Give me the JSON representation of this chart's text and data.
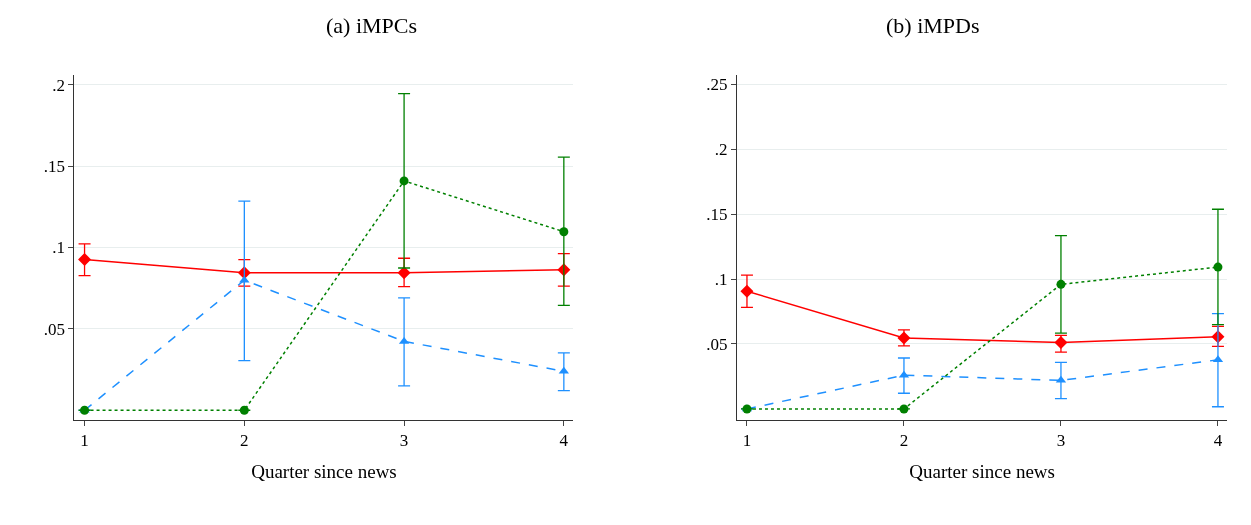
{
  "chart_data": [
    {
      "type": "line",
      "title": "(a) iMPCs",
      "xlabel": "Quarter since news",
      "x": [
        1,
        2,
        3,
        4
      ],
      "xlim": [
        0.937,
        4.06
      ],
      "xticks": [
        1,
        2,
        3,
        4
      ],
      "ylim": [
        -0.006,
        0.206
      ],
      "yticks": [
        {
          "value": 0.05,
          "label": ".05"
        },
        {
          "value": 0.1,
          "label": ".1"
        },
        {
          "value": 0.15,
          "label": ".15"
        },
        {
          "value": 0.2,
          "label": ".2"
        }
      ],
      "grid": "y",
      "series": [
        {
          "color": "#ff0000",
          "marker": "diamond",
          "line_style": "solid",
          "values": [
            0.0927,
            0.0845,
            0.0845,
            0.0863
          ],
          "errors": [
            [
              0.0827,
              0.1022
            ],
            [
              0.0763,
              0.0925
            ],
            [
              0.0759,
              0.0934
            ],
            [
              0.0763,
              0.0962
            ]
          ]
        },
        {
          "color": "#1e90ff",
          "marker": "triangle",
          "line_style": "dashed",
          "values": [
            0,
            0.0799,
            0.0423,
            0.0239
          ],
          "errors": [
            null,
            [
              0.0305,
              0.1285
            ],
            [
              0.015,
              0.069
            ],
            [
              0.012,
              0.0352
            ]
          ]
        },
        {
          "color": "#008000",
          "marker": "circle",
          "line_style": "dotted",
          "values": [
            0,
            0,
            0.1409,
            0.1097
          ],
          "errors": [
            null,
            null,
            [
              0.0874,
              0.1945
            ],
            [
              0.0644,
              0.1555
            ]
          ]
        }
      ]
    },
    {
      "type": "line",
      "title": "(b) iMPDs",
      "xlabel": "Quarter since news",
      "x": [
        1,
        2,
        3,
        4
      ],
      "xlim": [
        0.936,
        4.06
      ],
      "xticks": [
        1,
        2,
        3,
        4
      ],
      "ylim": [
        -0.0085,
        0.257
      ],
      "yticks": [
        {
          "value": 0.05,
          "label": ".05"
        },
        {
          "value": 0.1,
          "label": ".1"
        },
        {
          "value": 0.15,
          "label": ".15"
        },
        {
          "value": 0.2,
          "label": ".2"
        },
        {
          "value": 0.25,
          "label": ".25"
        }
      ],
      "grid": "y",
      "series": [
        {
          "color": "#ff0000",
          "marker": "diamond",
          "line_style": "solid",
          "values": [
            0.0906,
            0.0547,
            0.0511,
            0.0556
          ],
          "errors": [
            [
              0.0781,
              0.103
            ],
            [
              0.0485,
              0.0609
            ],
            [
              0.0437,
              0.0567
            ],
            [
              0.0482,
              0.0635
            ]
          ]
        },
        {
          "color": "#1e90ff",
          "marker": "triangle",
          "line_style": "dashed",
          "values": [
            0,
            0.026,
            0.022,
            0.0378
          ],
          "errors": [
            null,
            [
              0.0121,
              0.0392
            ],
            [
              0.0079,
              0.0358
            ],
            [
              0.0017,
              0.0733
            ]
          ]
        },
        {
          "color": "#008000",
          "marker": "circle",
          "line_style": "dotted",
          "values": [
            0,
            0,
            0.0959,
            0.1092
          ],
          "errors": [
            null,
            null,
            [
              0.0584,
              0.1334
            ],
            [
              0.0649,
              0.1537
            ]
          ]
        }
      ]
    }
  ]
}
